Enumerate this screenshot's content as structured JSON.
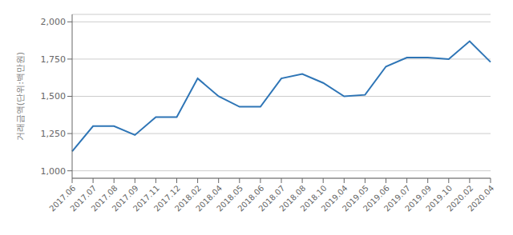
{
  "chart_data": {
    "type": "line",
    "y_label": "거래금액(단위:백만원)",
    "categories": [
      "2017.06",
      "2017.07",
      "2017.08",
      "2017.09",
      "2017.11",
      "2017.12",
      "2018.02",
      "2018.04",
      "2018.05",
      "2018.06",
      "2018.07",
      "2018.08",
      "2018.10",
      "2019.04",
      "2019.05",
      "2019.06",
      "2019.07",
      "2019.09",
      "2019.10",
      "2020.02",
      "2020.04"
    ],
    "values": [
      1130,
      1300,
      1300,
      1240,
      1360,
      1360,
      1620,
      1500,
      1430,
      1430,
      1620,
      1650,
      1590,
      1500,
      1510,
      1700,
      1760,
      1760,
      1750,
      1870,
      1730
    ],
    "color": "#2e75b6",
    "ylim": [
      950,
      2050
    ],
    "yticks": [
      {
        "value": 1000,
        "label": "1,000"
      },
      {
        "value": 1250,
        "label": "1,250"
      },
      {
        "value": 1500,
        "label": "1,500"
      },
      {
        "value": 1750,
        "label": "1,750"
      },
      {
        "value": 2000,
        "label": "2,000"
      }
    ],
    "grid": true
  }
}
